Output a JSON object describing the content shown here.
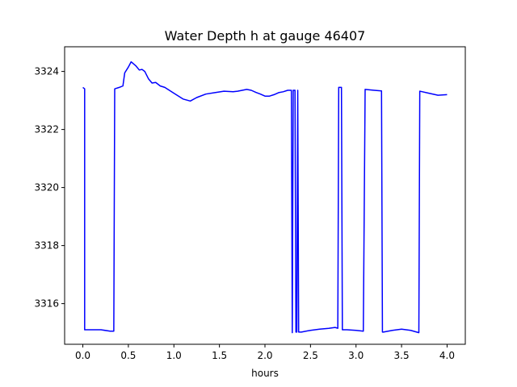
{
  "chart_data": {
    "type": "line",
    "title": "Water Depth h at gauge 46407",
    "xlabel": "hours",
    "ylabel": "",
    "xlim": [
      -0.2,
      4.2
    ],
    "ylim": [
      3314.6,
      3324.85
    ],
    "xticks": [
      0.0,
      0.5,
      1.0,
      1.5,
      2.0,
      2.5,
      3.0,
      3.5,
      4.0
    ],
    "xtick_labels": [
      "0.0",
      "0.5",
      "1.0",
      "1.5",
      "2.0",
      "2.5",
      "3.0",
      "3.5",
      "4.0"
    ],
    "yticks": [
      3316,
      3318,
      3320,
      3322,
      3324
    ],
    "ytick_labels": [
      "3316",
      "3318",
      "3320",
      "3322",
      "3324"
    ],
    "grid": false,
    "series": [
      {
        "color": "#0000ff",
        "x": [
          0.0,
          0.02,
          0.02,
          0.1,
          0.2,
          0.3,
          0.34,
          0.35,
          0.4,
          0.44,
          0.46,
          0.5,
          0.53,
          0.55,
          0.58,
          0.62,
          0.65,
          0.68,
          0.72,
          0.76,
          0.8,
          0.85,
          0.9,
          1.0,
          1.1,
          1.18,
          1.25,
          1.35,
          1.45,
          1.55,
          1.65,
          1.7,
          1.75,
          1.8,
          1.85,
          1.9,
          1.95,
          2.0,
          2.05,
          2.1,
          2.15,
          2.2,
          2.25,
          2.29,
          2.3,
          2.31,
          2.31,
          2.33,
          2.34,
          2.35,
          2.36,
          2.37,
          2.4,
          2.5,
          2.6,
          2.7,
          2.77,
          2.8,
          2.81,
          2.84,
          2.85,
          2.9,
          3.0,
          3.08,
          3.1,
          3.2,
          3.28,
          3.29,
          3.3,
          3.4,
          3.5,
          3.6,
          3.69,
          3.7,
          3.8,
          3.9,
          4.0
        ],
        "y": [
          3323.45,
          3323.4,
          3315.1,
          3315.1,
          3315.1,
          3315.05,
          3315.05,
          3323.4,
          3323.45,
          3323.5,
          3323.95,
          3324.15,
          3324.33,
          3324.28,
          3324.2,
          3324.05,
          3324.07,
          3324.0,
          3323.75,
          3323.6,
          3323.62,
          3323.5,
          3323.45,
          3323.25,
          3323.05,
          3322.98,
          3323.1,
          3323.22,
          3323.27,
          3323.32,
          3323.3,
          3323.32,
          3323.35,
          3323.38,
          3323.35,
          3323.28,
          3323.22,
          3323.15,
          3323.15,
          3323.2,
          3323.27,
          3323.3,
          3323.35,
          3323.35,
          3315.0,
          3323.35,
          3323.35,
          3323.35,
          3315.02,
          3315.02,
          3323.35,
          3315.02,
          3315.02,
          3315.08,
          3315.12,
          3315.15,
          3315.18,
          3315.15,
          3323.45,
          3323.45,
          3315.1,
          3315.1,
          3315.08,
          3315.05,
          3323.38,
          3323.35,
          3323.33,
          3315.02,
          3315.02,
          3315.08,
          3315.12,
          3315.08,
          3315.0,
          3323.32,
          3323.25,
          3323.18,
          3323.2
        ]
      }
    ]
  }
}
